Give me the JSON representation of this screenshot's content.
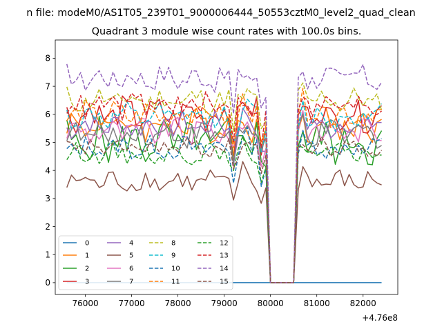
{
  "chart_data": {
    "type": "line",
    "suptitle": "n file: modeM0/AS1T05_239T01_9000006444_50553cztM0_level2_quad_clean",
    "title": "Quadrant 3 module wise count rates with 100.0s bins.",
    "xlabel": "",
    "ylabel": "",
    "x_offset_text": "+4.76e8",
    "x_offset": 476000000,
    "xlim": [
      75350,
      82750
    ],
    "ylim": [
      -0.42,
      8.65
    ],
    "xticks": [
      76000,
      77000,
      78000,
      79000,
      80000,
      81000,
      82000
    ],
    "xtick_labels": [
      "76000",
      "77000",
      "78000",
      "79000",
      "80000",
      "81000",
      "82000"
    ],
    "yticks": [
      0,
      1,
      2,
      3,
      4,
      5,
      6,
      7,
      8
    ],
    "ytick_labels": [
      "0",
      "1",
      "2",
      "3",
      "4",
      "5",
      "6",
      "7",
      "8"
    ],
    "grid": false,
    "legend_position": "lower-left",
    "legend_columns": 4,
    "x_start": 75600,
    "x_step": 100,
    "n_points": 69,
    "gap_indices": [
      44,
      45,
      46,
      47,
      48,
      49
    ],
    "series": [
      {
        "name": "0",
        "color": "#1f77b4",
        "dash": "solid",
        "base": 0.0,
        "amp": 0.0,
        "seed": 0
      },
      {
        "name": "1",
        "color": "#ff7f0e",
        "dash": "solid",
        "base": 5.6,
        "amp": 0.5,
        "seed": 1
      },
      {
        "name": "2",
        "color": "#2ca02c",
        "dash": "solid",
        "base": 5.0,
        "amp": 0.7,
        "seed": 2
      },
      {
        "name": "3",
        "color": "#d62728",
        "dash": "solid",
        "base": 6.0,
        "amp": 0.5,
        "seed": 3
      },
      {
        "name": "4",
        "color": "#9467bd",
        "dash": "solid",
        "base": 5.6,
        "amp": 0.4,
        "seed": 4
      },
      {
        "name": "5",
        "color": "#8c564b",
        "dash": "solid",
        "base": 3.6,
        "amp": 0.35,
        "seed": 5
      },
      {
        "name": "6",
        "color": "#e377c2",
        "dash": "solid",
        "base": 5.4,
        "amp": 0.4,
        "seed": 6
      },
      {
        "name": "7",
        "color": "#7f7f7f",
        "dash": "solid",
        "base": 5.3,
        "amp": 0.4,
        "seed": 7
      },
      {
        "name": "8",
        "color": "#bcbd22",
        "dash": "dashed",
        "base": 6.5,
        "amp": 0.4,
        "seed": 8
      },
      {
        "name": "9",
        "color": "#17becf",
        "dash": "dashed",
        "base": 5.9,
        "amp": 0.4,
        "seed": 9
      },
      {
        "name": "10",
        "color": "#1f77b4",
        "dash": "dashed",
        "base": 4.8,
        "amp": 0.35,
        "seed": 10
      },
      {
        "name": "11",
        "color": "#ff7f0e",
        "dash": "dashed",
        "base": 6.0,
        "amp": 0.4,
        "seed": 11
      },
      {
        "name": "12",
        "color": "#2ca02c",
        "dash": "dashed",
        "base": 4.6,
        "amp": 0.3,
        "seed": 12
      },
      {
        "name": "13",
        "color": "#d62728",
        "dash": "dashed",
        "base": 6.3,
        "amp": 0.4,
        "seed": 13
      },
      {
        "name": "14",
        "color": "#9467bd",
        "dash": "dashed",
        "base": 7.3,
        "amp": 0.4,
        "seed": 14
      },
      {
        "name": "15",
        "color": "#8c564b",
        "dash": "dashed",
        "base": 4.8,
        "amp": 0.3,
        "seed": 15
      }
    ]
  }
}
